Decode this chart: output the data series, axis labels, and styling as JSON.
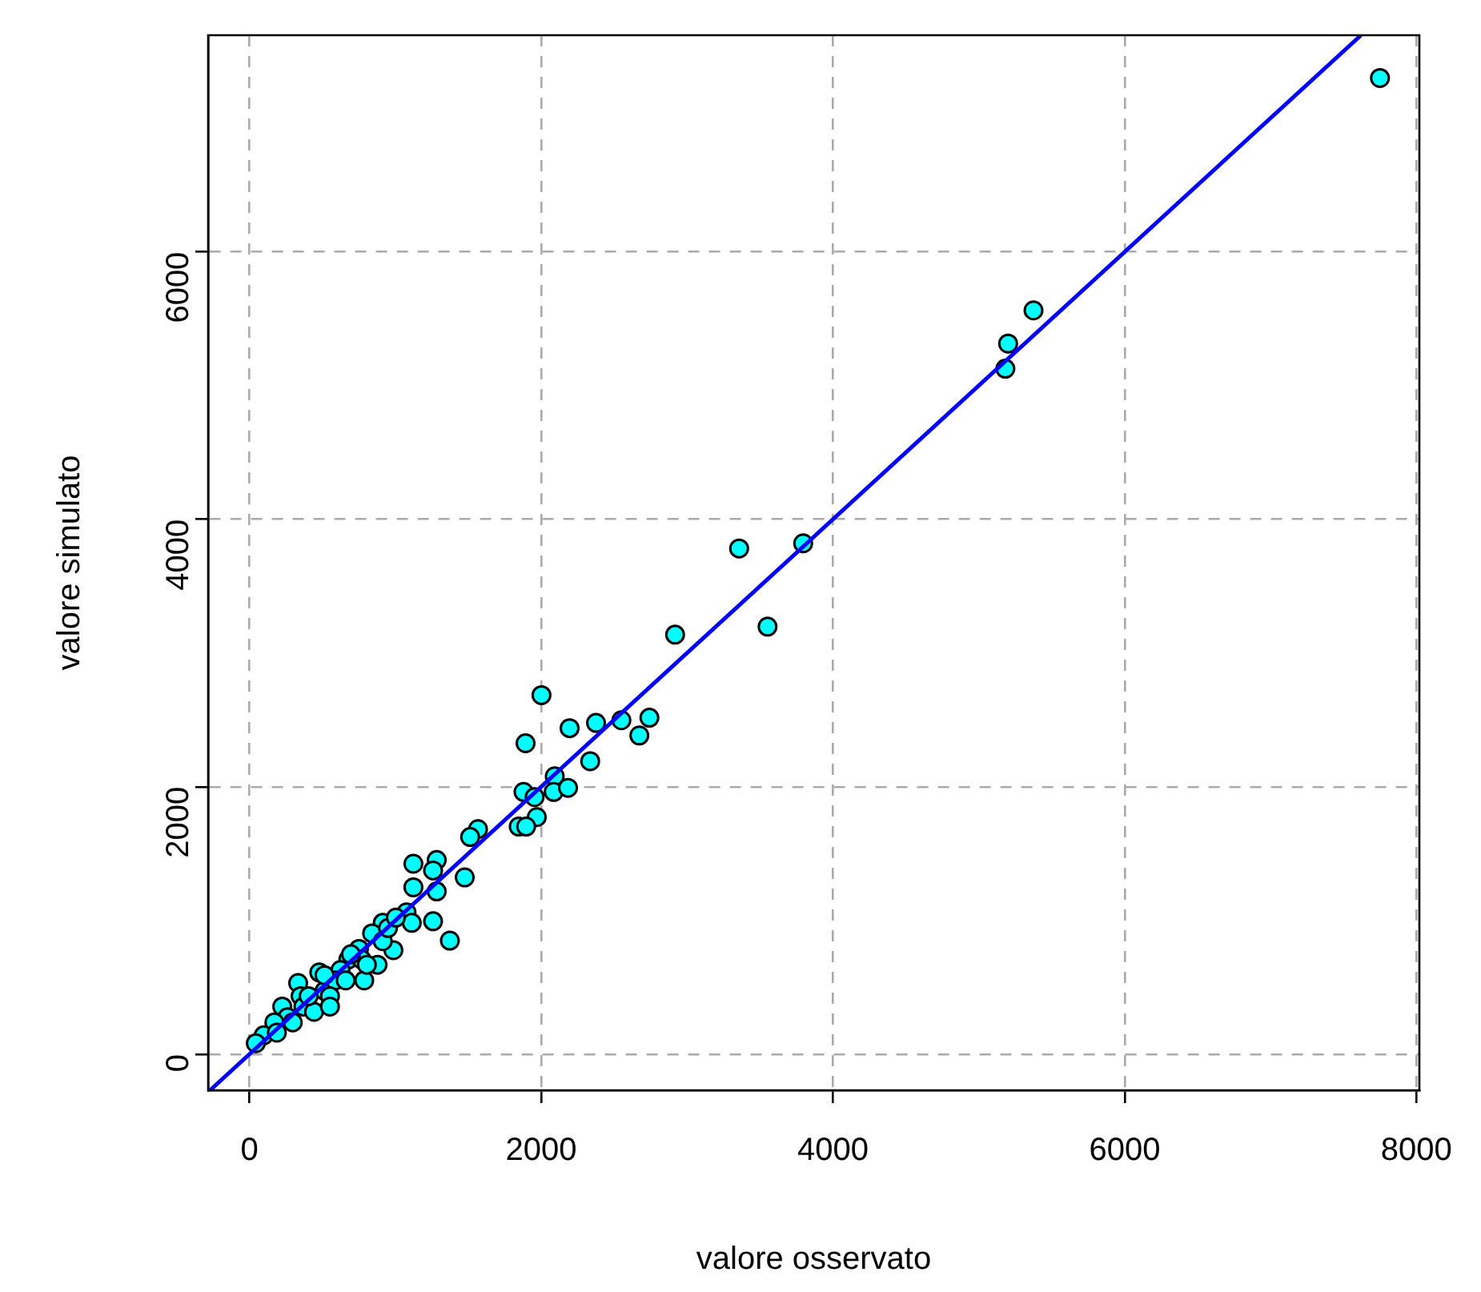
{
  "chart_data": {
    "type": "scatter",
    "xlabel": "valore osservato",
    "ylabel": "valore simulato",
    "xlim": [
      -283,
      8020
    ],
    "ylim": [
      -270,
      7620
    ],
    "xticks": [
      0,
      2000,
      4000,
      6000,
      8000
    ],
    "yticks": [
      0,
      2000,
      4000,
      6000
    ],
    "grid": true,
    "legend": false,
    "series": [
      {
        "marker": "circle",
        "color": "#00ffff",
        "x": [
          7750,
          5375,
          5201,
          5182,
          3796,
          3357,
          3552,
          2918,
          2002,
          1893,
          2195,
          2376,
          2550,
          2742,
          2673,
          2336,
          2093,
          2086,
          2184,
          1879,
          1955,
          1970,
          1846,
          1897,
          1567,
          1513,
          1284,
          1259,
          1284,
          1476,
          1259,
          1374,
          1124,
          1124,
          1077,
          1113,
          987,
          787,
          914,
          841,
          914,
          751,
          678,
          878,
          769,
          624,
          479,
          334,
          351,
          515,
          588,
          552,
          660,
          225,
          261,
          171,
          370,
          443,
          98,
          44,
          188,
          297,
          406,
          515,
          552,
          696,
          805,
          950,
          1004
        ],
        "values": [
          7300,
          5562,
          5314,
          5126,
          3820,
          3782,
          3197,
          3137,
          2685,
          2325,
          2438,
          2477,
          2497,
          2516,
          2383,
          2191,
          2078,
          1961,
          1992,
          1961,
          1923,
          1773,
          1702,
          1702,
          1683,
          1624,
          1452,
          1374,
          1217,
          1322,
          994,
          849,
          1424,
          1248,
          1060,
          982,
          778,
          552,
          982,
          904,
          845,
          787,
          708,
          669,
          708,
          629,
          611,
          532,
          434,
          473,
          552,
          434,
          552,
          356,
          277,
          238,
          356,
          317,
          141,
          82,
          161,
          238,
          434,
          591,
          356,
          747,
          669,
          943,
          1021
        ]
      },
      {
        "type": "line",
        "marker": "none",
        "line_style": "solid",
        "color": "#0000ff",
        "x": [
          -270,
          7620
        ],
        "values": [
          -270,
          7620
        ]
      }
    ]
  }
}
